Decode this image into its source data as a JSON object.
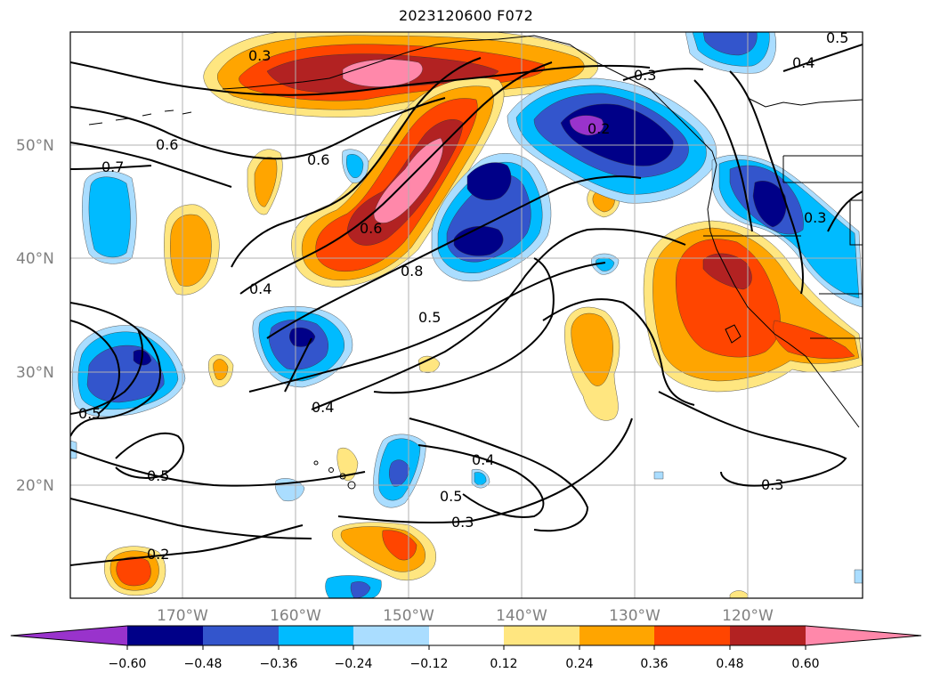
{
  "title": "2023120600 F072",
  "colors": {
    "levels": [
      "#9933cc",
      "#000088",
      "#3355cc",
      "#00bbff",
      "#aaddff",
      "#ffffff",
      "#ffe680",
      "#ffa500",
      "#ff4500",
      "#b22222",
      "#ff88aa"
    ],
    "contour_line": "#000000",
    "grid": "#b0b0b0"
  },
  "axes": {
    "lat_labels": [
      "50°N",
      "40°N",
      "30°N",
      "20°N"
    ],
    "lon_labels": [
      "170°W",
      "160°W",
      "150°W",
      "140°W",
      "130°W",
      "120°W"
    ]
  },
  "contour_labels": [
    "0.3",
    "0.3",
    "0.4",
    "0.5",
    "0.6",
    "0.7",
    "0.6",
    "0.6",
    "0.8",
    "0.4",
    "0.5",
    "0.4",
    "0.5",
    "0.3",
    "0.3",
    "0.5",
    "0.4",
    "0.2",
    "0.3",
    "0.2",
    "0.5"
  ],
  "colorbar": {
    "ticks": [
      "−0.60",
      "−0.48",
      "−0.36",
      "−0.24",
      "−0.12",
      "0.12",
      "0.24",
      "0.36",
      "0.48",
      "0.60"
    ]
  }
}
